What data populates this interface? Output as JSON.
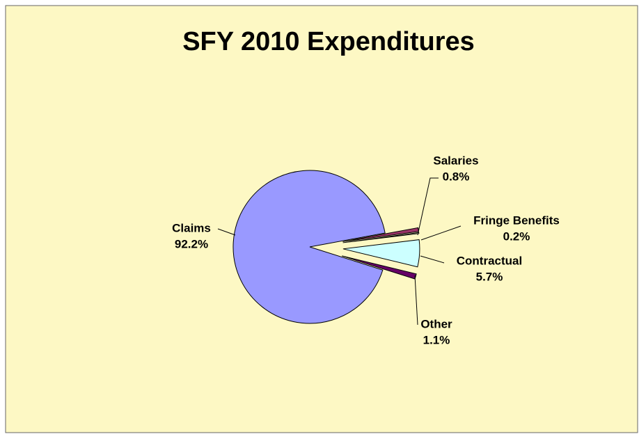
{
  "chart_data": {
    "type": "pie",
    "title": "SFY 2010 Expenditures",
    "categories": [
      "Claims",
      "Salaries",
      "Fringe Benefits",
      "Contractual",
      "Other"
    ],
    "values": [
      92.2,
      0.8,
      0.2,
      5.7,
      1.1
    ],
    "value_labels": [
      "92.2%",
      "0.8%",
      "0.2%",
      "5.7%",
      "1.1%"
    ],
    "colors": [
      "#9999ff",
      "#993366",
      "#ffffcc",
      "#ccffff",
      "#660066"
    ]
  }
}
